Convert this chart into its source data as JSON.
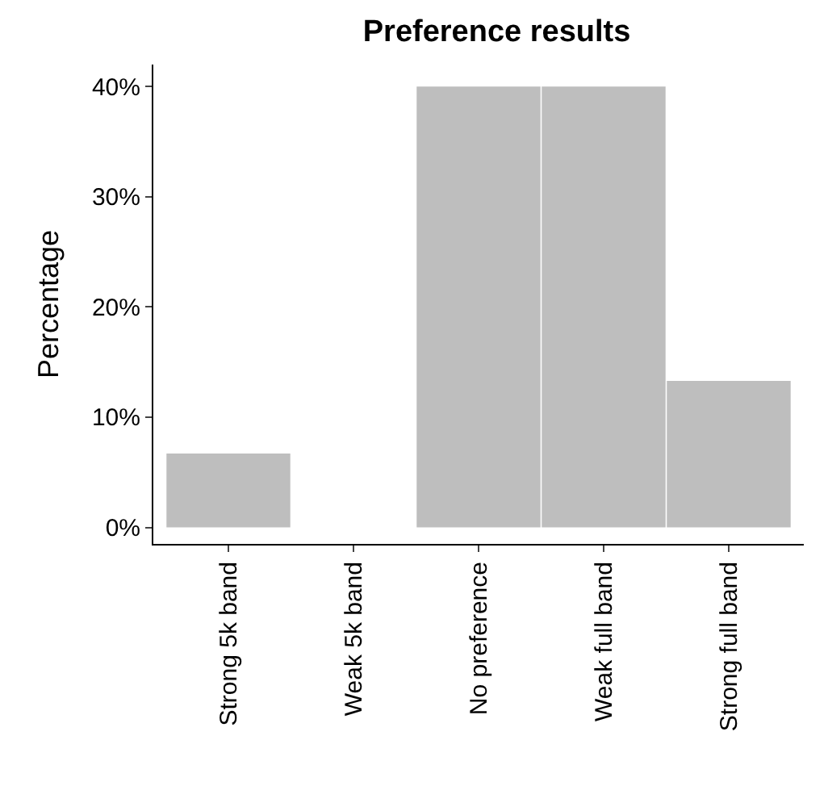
{
  "chart_data": {
    "type": "bar",
    "title": "Preference results",
    "ylabel": "Percentage",
    "categories": [
      "Strong 5k band",
      "Weak 5k band",
      "No preference",
      "Weak full band",
      "Strong full band"
    ],
    "values": [
      6.7,
      0,
      40,
      40,
      13.3
    ],
    "color": "#bebebe",
    "ylim": [
      -1.5,
      42
    ],
    "yticks": [
      {
        "value": 0,
        "label": "0%"
      },
      {
        "value": 10,
        "label": "10%"
      },
      {
        "value": 20,
        "label": "20%"
      },
      {
        "value": 30,
        "label": "30%"
      },
      {
        "value": 40,
        "label": "40%"
      }
    ],
    "legend": false
  }
}
